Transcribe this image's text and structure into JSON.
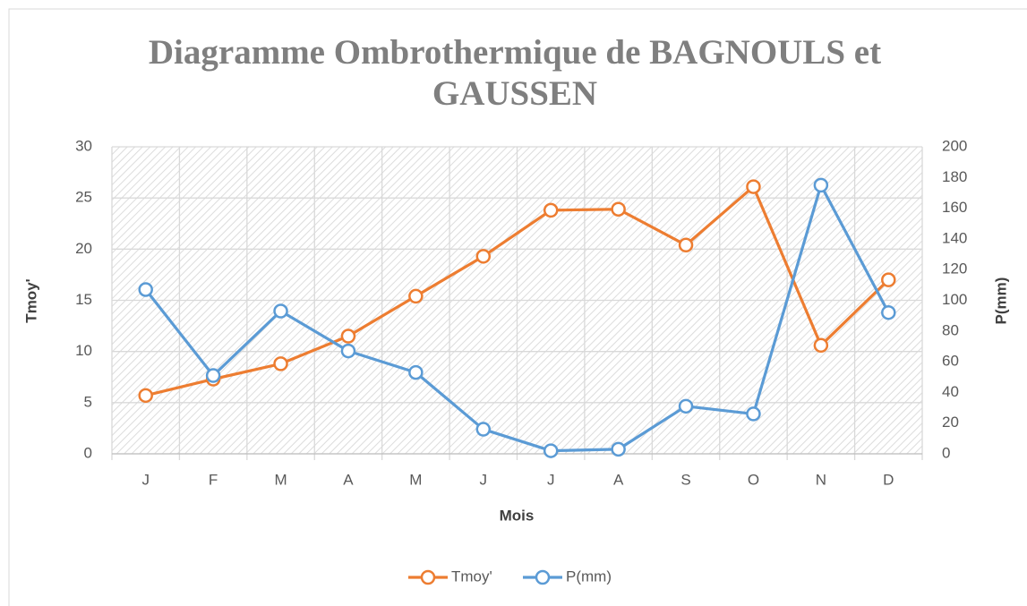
{
  "chart_data": {
    "type": "line",
    "title": "Diagramme Ombrothermique de BAGNOULS et GAUSSEN",
    "xlabel": "Mois",
    "ylabel": "Tmoy'",
    "y2label": "P(mm)",
    "categories": [
      "J",
      "F",
      "M",
      "A",
      "M",
      "J",
      "J",
      "A",
      "S",
      "O",
      "N",
      "D"
    ],
    "series": [
      {
        "name": "Tmoy'",
        "color": "#ed7d31",
        "values": [
          5.7,
          7.3,
          8.8,
          11.5,
          15.4,
          19.3,
          23.8,
          23.9,
          20.4,
          26.1,
          10.6,
          17.0
        ]
      },
      {
        "name": "P(mm)",
        "color": "#5b9bd5",
        "axis": "y2",
        "values": [
          107,
          51,
          93,
          67,
          53,
          16,
          2,
          3,
          31,
          26,
          175,
          92
        ]
      }
    ],
    "ylim": [
      0,
      30
    ],
    "yticks": [
      0,
      5,
      10,
      15,
      20,
      25,
      30
    ],
    "y2lim": [
      0,
      200
    ],
    "y2ticks": [
      0,
      20,
      40,
      60,
      80,
      100,
      120,
      140,
      160,
      180,
      200
    ],
    "grid": true,
    "legend": "bottom"
  }
}
